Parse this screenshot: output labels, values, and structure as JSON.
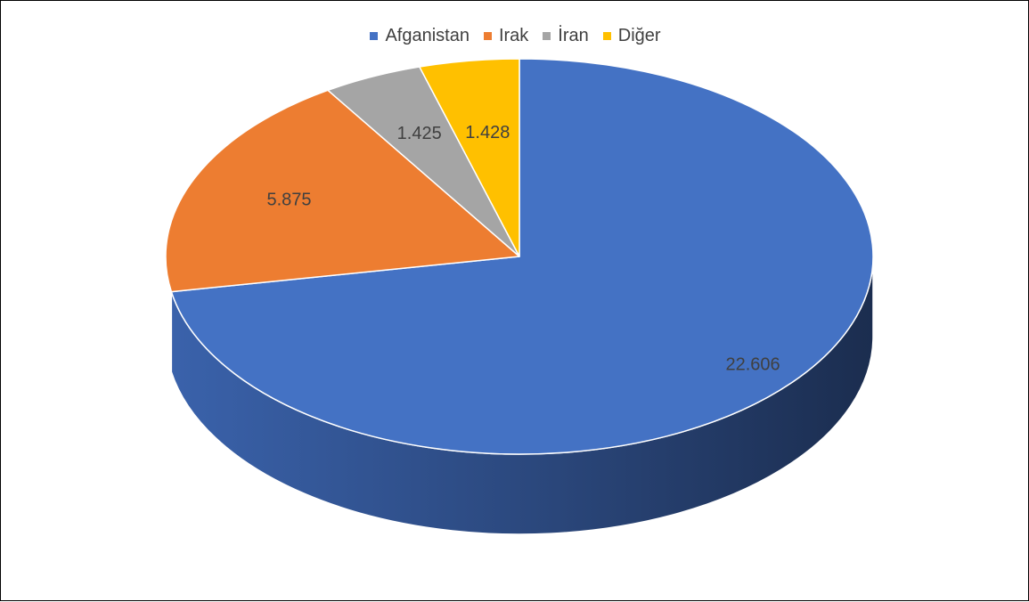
{
  "chart_data": {
    "type": "pie",
    "style": "3d",
    "categories": [
      "Afganistan",
      "Irak",
      "İran",
      "Diğer"
    ],
    "values": [
      22606,
      5875,
      1425,
      1428
    ],
    "data_labels": [
      "22.606",
      "5.875",
      "1.425",
      "1.428"
    ],
    "colors": [
      "#4472C4",
      "#ED7D31",
      "#A5A5A5",
      "#FFC000"
    ],
    "legend_position": "top",
    "title": ""
  }
}
